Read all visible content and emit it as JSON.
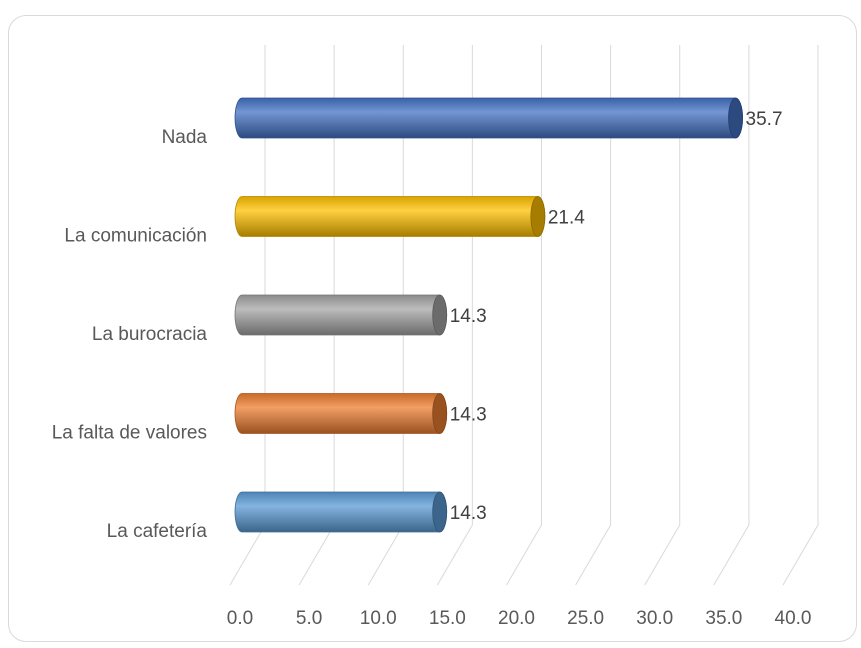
{
  "chart_data": {
    "type": "bar",
    "orientation": "horizontal",
    "style": "3d-cylinder",
    "categories": [
      "Nada",
      "La comunicación",
      "La burocracia",
      "La falta de valores",
      "La cafetería"
    ],
    "values": [
      35.7,
      21.4,
      14.3,
      14.3,
      14.3
    ],
    "data_labels": [
      "35.7",
      "21.4",
      "14.3",
      "14.3",
      "14.3"
    ],
    "colors": [
      "#4472c4",
      "#ffc000",
      "#a5a5a5",
      "#ed7d31",
      "#5b9bd5"
    ],
    "xlim": [
      0,
      40
    ],
    "x_ticks": [
      "0.0",
      "5.0",
      "10.0",
      "15.0",
      "20.0",
      "25.0",
      "30.0",
      "35.0",
      "40.0"
    ],
    "grid": true,
    "title": "",
    "xlabel": "",
    "ylabel": ""
  }
}
